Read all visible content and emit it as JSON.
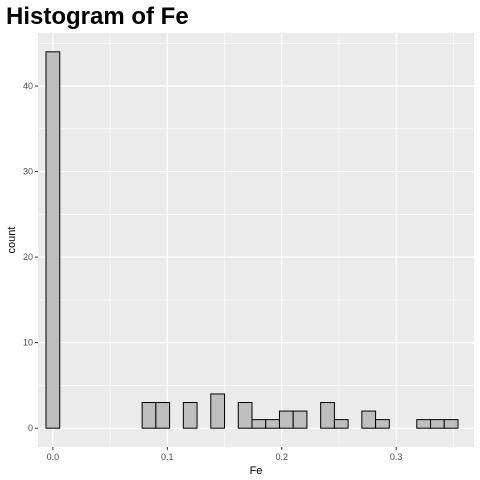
{
  "chart_data": {
    "type": "bar",
    "title": "Histogram of Fe",
    "xlabel": "Fe",
    "ylabel": "count",
    "xlim": [
      -0.013,
      0.368
    ],
    "ylim": [
      -2.2,
      46.2
    ],
    "x_ticks": [
      {
        "value": 0.0,
        "label": "0.0"
      },
      {
        "value": 0.1,
        "label": "0.1"
      },
      {
        "value": 0.2,
        "label": "0.2"
      },
      {
        "value": 0.3,
        "label": "0.3"
      }
    ],
    "y_ticks": [
      {
        "value": 0,
        "label": "0"
      },
      {
        "value": 10,
        "label": "10"
      },
      {
        "value": 20,
        "label": "20"
      },
      {
        "value": 30,
        "label": "30"
      },
      {
        "value": 40,
        "label": "40"
      }
    ],
    "bin_width": 0.012,
    "bin_centers": [
      0.0,
      0.012,
      0.024,
      0.036,
      0.048,
      0.06,
      0.072,
      0.084,
      0.096,
      0.108,
      0.12,
      0.132,
      0.144,
      0.156,
      0.168,
      0.18,
      0.192,
      0.204,
      0.216,
      0.228,
      0.24,
      0.252,
      0.264,
      0.276,
      0.288,
      0.3,
      0.312,
      0.324,
      0.336,
      0.348
    ],
    "counts": [
      44,
      0,
      0,
      0,
      0,
      0,
      0,
      3,
      3,
      0,
      3,
      0,
      4,
      0,
      3,
      1,
      1,
      2,
      2,
      0,
      3,
      1,
      0,
      2,
      1,
      0,
      0,
      1,
      1,
      1
    ],
    "grid": true,
    "colors": {
      "panel": "#ebebeb",
      "grid": "#ffffff",
      "bar_fill": "#bebebe",
      "bar_stroke": "#000000"
    }
  }
}
